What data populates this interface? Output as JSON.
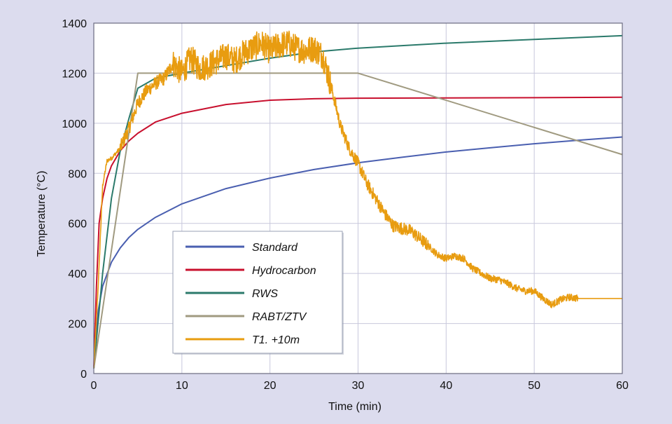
{
  "chart_data": {
    "type": "line",
    "title": "",
    "xlabel": "Time (min)",
    "ylabel": "Temperature (°C)",
    "xlim": [
      0,
      60
    ],
    "ylim": [
      0,
      1400
    ],
    "xticks": [
      0,
      10,
      20,
      30,
      40,
      50,
      60
    ],
    "yticks": [
      0,
      200,
      400,
      600,
      800,
      1000,
      1200,
      1400
    ],
    "grid": true,
    "legend_position": "lower-left",
    "colors": {
      "background": "#dcdcee",
      "plot_area": "#ffffff",
      "grid": "#c8c8dc",
      "axis": "#6a6a80"
    },
    "series": [
      {
        "name": "Standard",
        "color": "#4a5fb0",
        "points": [
          [
            0,
            20
          ],
          [
            0.5,
            250
          ],
          [
            1,
            349
          ],
          [
            2,
            445
          ],
          [
            3,
            502
          ],
          [
            4,
            544
          ],
          [
            5,
            576
          ],
          [
            7,
            624
          ],
          [
            10,
            678
          ],
          [
            15,
            739
          ],
          [
            20,
            781
          ],
          [
            25,
            815
          ],
          [
            30,
            842
          ],
          [
            35,
            864
          ],
          [
            40,
            885
          ],
          [
            45,
            902
          ],
          [
            50,
            918
          ],
          [
            55,
            932
          ],
          [
            60,
            945
          ]
        ]
      },
      {
        "name": "Hydrocarbon",
        "color": "#c8102e",
        "points": [
          [
            0,
            20
          ],
          [
            0.3,
            350
          ],
          [
            0.6,
            600
          ],
          [
            1,
            700
          ],
          [
            1.5,
            780
          ],
          [
            2,
            830
          ],
          [
            3,
            890
          ],
          [
            4,
            930
          ],
          [
            5,
            960
          ],
          [
            7,
            1005
          ],
          [
            10,
            1040
          ],
          [
            15,
            1075
          ],
          [
            20,
            1092
          ],
          [
            25,
            1098
          ],
          [
            30,
            1100
          ],
          [
            40,
            1101
          ],
          [
            50,
            1102
          ],
          [
            60,
            1104
          ]
        ]
      },
      {
        "name": "RWS",
        "color": "#2b7a6b",
        "points": [
          [
            0,
            20
          ],
          [
            1,
            400
          ],
          [
            2,
            700
          ],
          [
            3,
            890
          ],
          [
            4,
            1020
          ],
          [
            5,
            1140
          ],
          [
            7,
            1180
          ],
          [
            10,
            1200
          ],
          [
            15,
            1230
          ],
          [
            20,
            1260
          ],
          [
            25,
            1285
          ],
          [
            30,
            1300
          ],
          [
            35,
            1310
          ],
          [
            40,
            1320
          ],
          [
            50,
            1335
          ],
          [
            60,
            1350
          ]
        ]
      },
      {
        "name": "RABT/ZTV",
        "color": "#a09a80",
        "points": [
          [
            0,
            20
          ],
          [
            5,
            1200
          ],
          [
            30,
            1200
          ],
          [
            60,
            875
          ]
        ]
      },
      {
        "name": "T1. +10m",
        "color": "#e89c10",
        "points": [
          [
            0,
            20
          ],
          [
            0.5,
            350
          ],
          [
            1,
            750
          ],
          [
            1.5,
            850
          ],
          [
            2,
            860
          ],
          [
            3,
            900
          ],
          [
            4,
            980
          ],
          [
            5,
            1080
          ],
          [
            6,
            1130
          ],
          [
            7,
            1160
          ],
          [
            8,
            1180
          ],
          [
            9,
            1240
          ],
          [
            10,
            1200
          ],
          [
            11,
            1260
          ],
          [
            12,
            1220
          ],
          [
            13,
            1230
          ],
          [
            14,
            1250
          ],
          [
            15,
            1270
          ],
          [
            16,
            1250
          ],
          [
            17,
            1280
          ],
          [
            18,
            1300
          ],
          [
            19,
            1320
          ],
          [
            20,
            1290
          ],
          [
            21,
            1310
          ],
          [
            22,
            1320
          ],
          [
            23,
            1300
          ],
          [
            24,
            1290
          ],
          [
            25,
            1300
          ],
          [
            26,
            1270
          ],
          [
            27,
            1140
          ],
          [
            28,
            990
          ],
          [
            29,
            900
          ],
          [
            30,
            840
          ],
          [
            31,
            760
          ],
          [
            32,
            700
          ],
          [
            33,
            640
          ],
          [
            34,
            590
          ],
          [
            35,
            580
          ],
          [
            36,
            570
          ],
          [
            37,
            540
          ],
          [
            38,
            510
          ],
          [
            39,
            475
          ],
          [
            40,
            460
          ],
          [
            41,
            470
          ],
          [
            42,
            460
          ],
          [
            43,
            420
          ],
          [
            44,
            400
          ],
          [
            45,
            380
          ],
          [
            46,
            375
          ],
          [
            47,
            360
          ],
          [
            48,
            340
          ],
          [
            49,
            330
          ],
          [
            50,
            330
          ],
          [
            51,
            300
          ],
          [
            52,
            275
          ],
          [
            53,
            295
          ],
          [
            54,
            305
          ],
          [
            55,
            300
          ],
          [
            56,
            300
          ],
          [
            60,
            300
          ]
        ]
      }
    ]
  }
}
